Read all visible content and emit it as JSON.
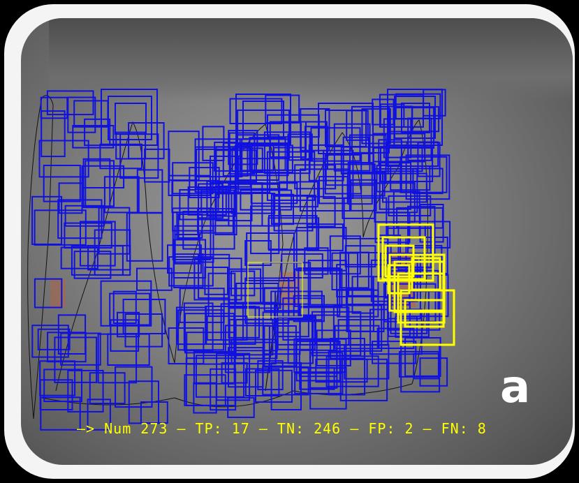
{
  "image": {
    "panel_letter": "a",
    "status_line": "—> Num 273 — TP: 17 — TN: 246 — FP: 2 — FN: 8",
    "colors": {
      "detections": "#1010e0",
      "true_positive": "#ffff00",
      "outline": "#111111",
      "lesion": "#c0603a"
    }
  }
}
